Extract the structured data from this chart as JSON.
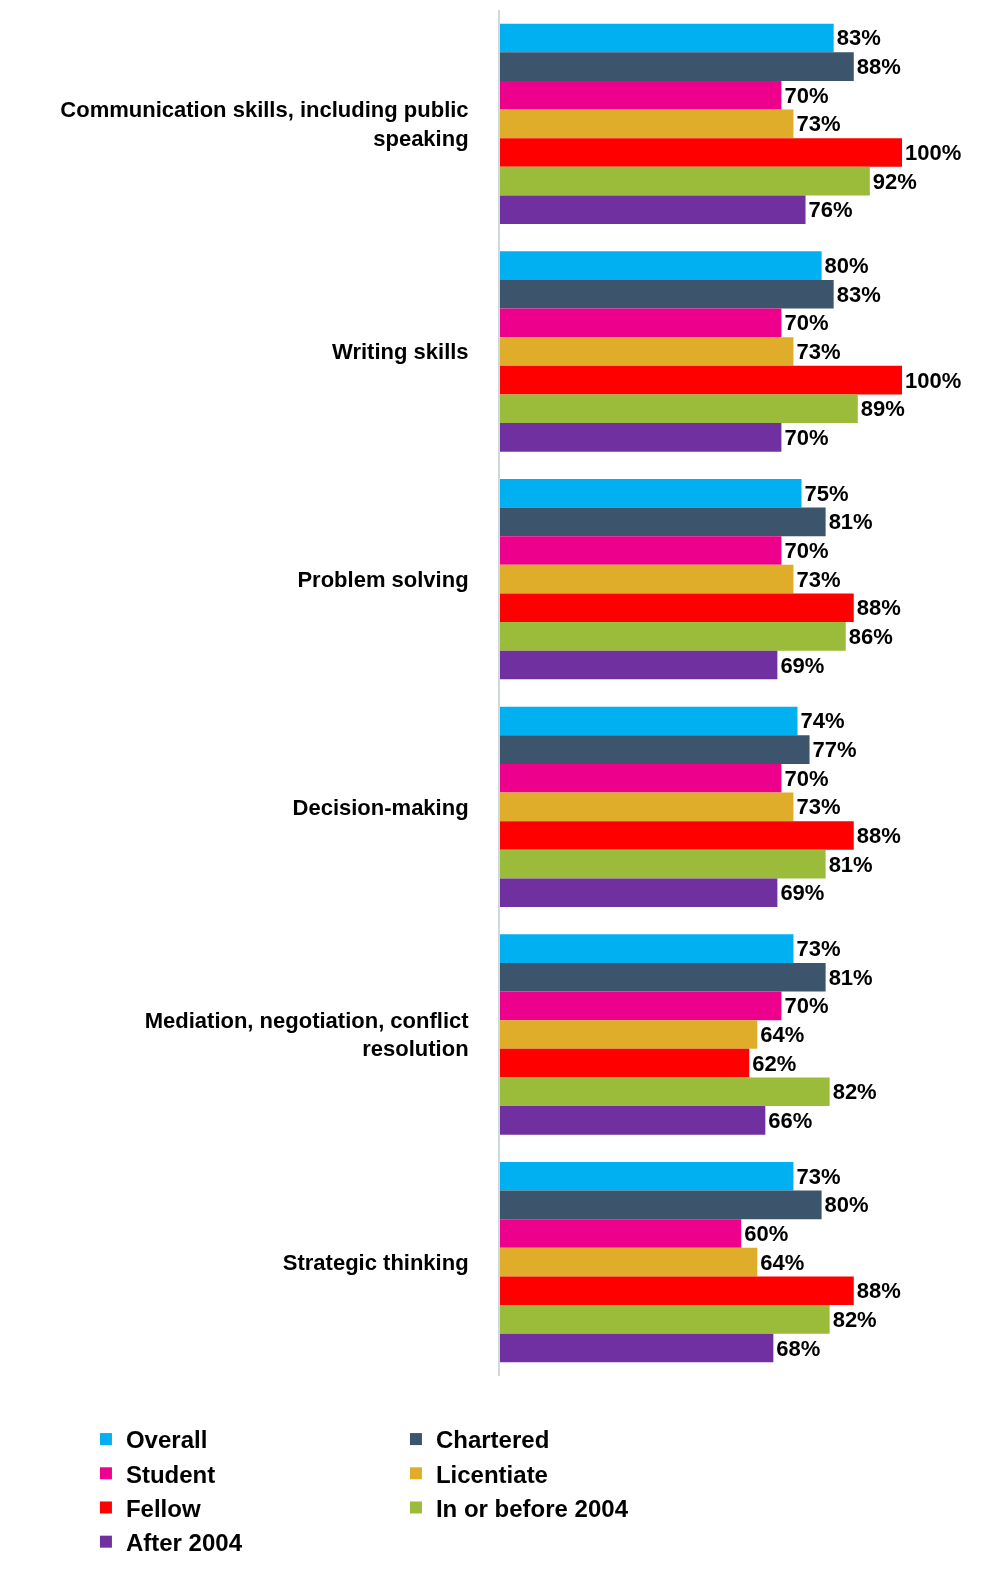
{
  "chart_data": {
    "type": "bar",
    "orientation": "horizontal",
    "legend": "bottom",
    "tick_labels": "y",
    "categories": [
      "Communication skills, including public speaking",
      "Writing skills",
      "Problem solving",
      "Decision-making",
      "Mediation, negotiation, conflict resolution",
      "Strategic thinking"
    ],
    "series": [
      {
        "name": "Overall",
        "color": "#00b0f0",
        "values": [
          83,
          80,
          75,
          74,
          73,
          73
        ],
        "value_labels": [
          "83%",
          "80%",
          "75%",
          "74%",
          "73%",
          "73%"
        ]
      },
      {
        "name": "Chartered",
        "color": "#3c546c",
        "values": [
          88,
          83,
          81,
          77,
          81,
          80
        ],
        "value_labels": [
          "88%",
          "83%",
          "81%",
          "77%",
          "81%",
          "80%"
        ]
      },
      {
        "name": "Student",
        "color": "#ec008c",
        "values": [
          70,
          70,
          70,
          70,
          70,
          60
        ],
        "value_labels": [
          "70%",
          "70%",
          "70%",
          "70%",
          "70%",
          "60%"
        ]
      },
      {
        "name": "Licentiate",
        "color": "#dfad29",
        "values": [
          73,
          73,
          73,
          73,
          64,
          64
        ],
        "value_labels": [
          "73%",
          "73%",
          "73%",
          "73%",
          "64%",
          "64%"
        ]
      },
      {
        "name": "Fellow",
        "color": "#ff0000",
        "values": [
          100,
          100,
          88,
          88,
          62,
          88
        ],
        "value_labels": [
          "100%",
          "100%",
          "88%",
          "88%",
          "62%",
          "88%"
        ]
      },
      {
        "name": "In or before 2004",
        "color": "#9bbb3b",
        "values": [
          92,
          89,
          86,
          81,
          82,
          82
        ],
        "value_labels": [
          "92%",
          "89%",
          "86%",
          "81%",
          "82%",
          "82%"
        ]
      },
      {
        "name": "After 2004",
        "color": "#7030a0",
        "values": [
          76,
          70,
          69,
          69,
          66,
          68
        ],
        "value_labels": [
          "76%",
          "70%",
          "69%",
          "69%",
          "66%",
          "68%"
        ]
      }
    ]
  }
}
